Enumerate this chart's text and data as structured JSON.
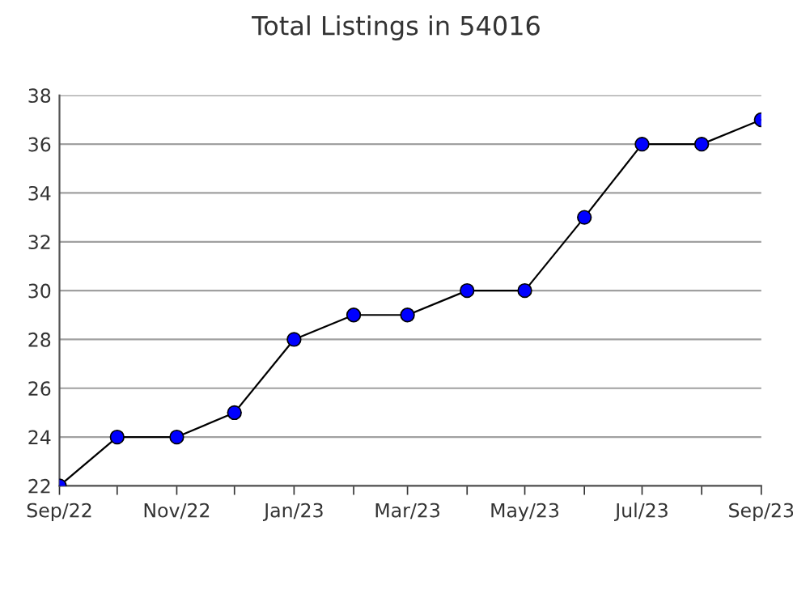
{
  "chart_data": {
    "type": "line",
    "title": "Total Listings in 54016",
    "x": [
      "2022-09",
      "2022-10",
      "2022-11",
      "2022-12",
      "2023-01",
      "2023-02",
      "2023-03",
      "2023-04",
      "2023-05",
      "2023-06",
      "2023-07",
      "2023-08",
      "2023-09"
    ],
    "series": [
      {
        "color": "#0000ff",
        "values": [
          22,
          24,
          24,
          25,
          28,
          29,
          29,
          30,
          30,
          33,
          36,
          36,
          37
        ]
      }
    ],
    "marker": "circle",
    "line_style": "solid",
    "grid": "y",
    "ylim": [
      22,
      38
    ],
    "yticks": [
      22,
      24,
      26,
      28,
      30,
      32,
      34,
      36,
      38
    ],
    "xlim": [
      "2022-09",
      "2023-09"
    ],
    "xticks": [
      {
        "value": "2022-09",
        "label": "Sep/22"
      },
      {
        "value": "2022-10",
        "label": null
      },
      {
        "value": "2022-11",
        "label": "Nov/22"
      },
      {
        "value": "2022-12",
        "label": null
      },
      {
        "value": "2023-01",
        "label": "Jan/23"
      },
      {
        "value": "2023-02",
        "label": null
      },
      {
        "value": "2023-03",
        "label": "Mar/23"
      },
      {
        "value": "2023-04",
        "label": null
      },
      {
        "value": "2023-05",
        "label": "May/23"
      },
      {
        "value": "2023-06",
        "label": null
      },
      {
        "value": "2023-07",
        "label": "Jul/23"
      },
      {
        "value": "2023-08",
        "label": null
      },
      {
        "value": "2023-09",
        "label": "Sep/23"
      }
    ]
  }
}
